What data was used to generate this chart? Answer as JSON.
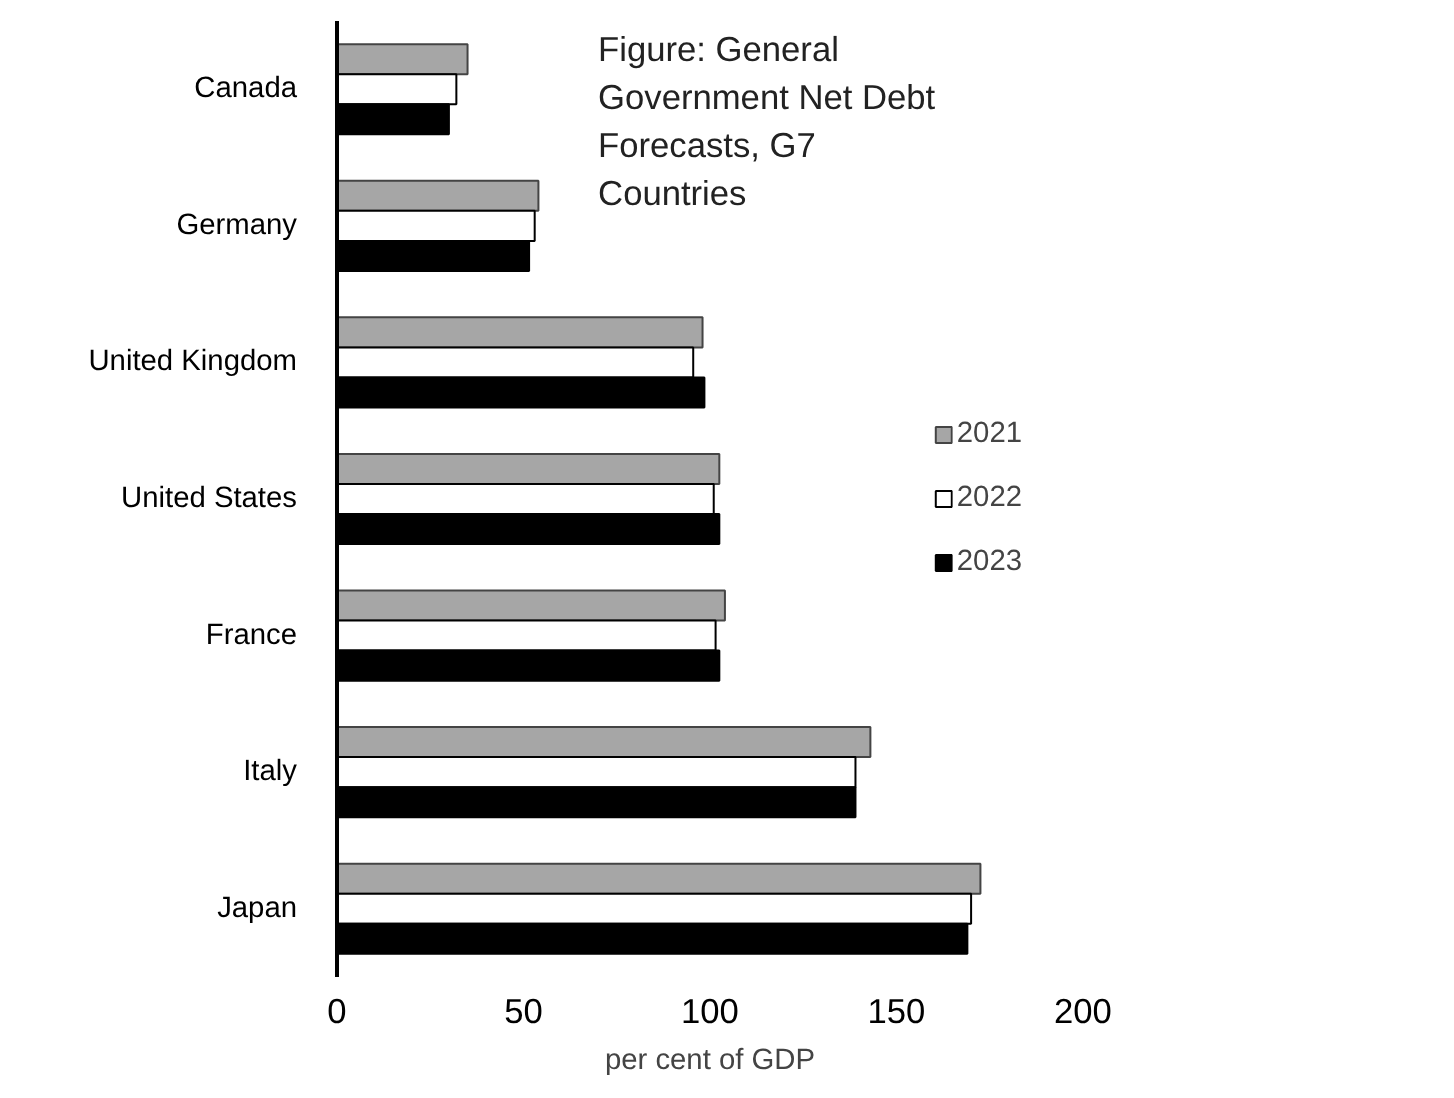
{
  "chart_data": {
    "type": "bar",
    "orientation": "horizontal",
    "title": "Figure: General Government Net Debt Forecasts, G7 Countries",
    "xlabel": "per cent of GDP",
    "categories": [
      "Canada",
      "Germany",
      "United Kingdom",
      "United States",
      "France",
      "Italy",
      "Japan"
    ],
    "series": [
      {
        "name": "2021",
        "color": "#a6a6a6",
        "values": [
          35,
          54,
          98,
          102.5,
          104,
          143,
          172.5
        ]
      },
      {
        "name": "2022",
        "color": "#ffffff",
        "values": [
          32,
          53,
          95.5,
          101,
          101.5,
          139,
          170
        ]
      },
      {
        "name": "2023",
        "color": "#000000",
        "values": [
          30,
          51.5,
          98.5,
          102.5,
          102.5,
          139,
          169
        ]
      }
    ],
    "xlim": [
      0,
      200
    ],
    "xticks": [
      0,
      50,
      100,
      150,
      200
    ],
    "grid": false,
    "legend": "right"
  }
}
